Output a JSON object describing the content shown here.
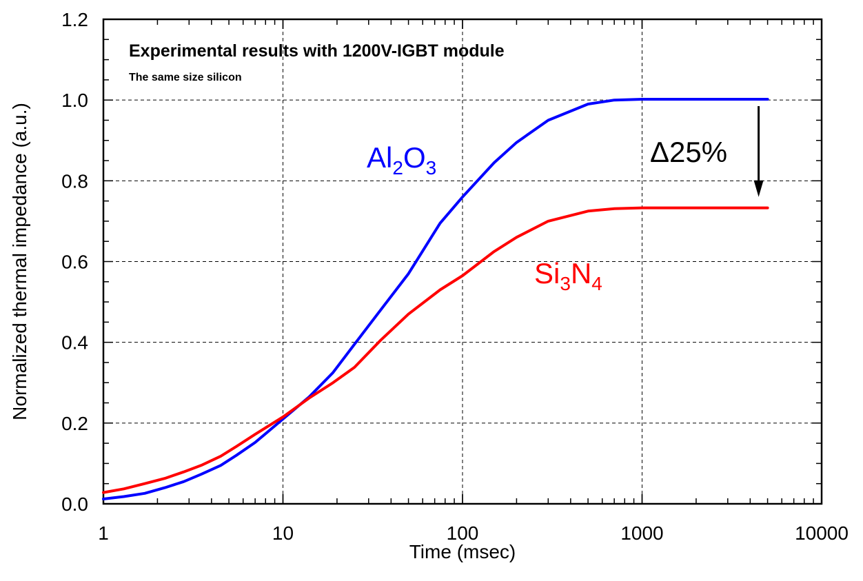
{
  "chart_data": {
    "type": "line",
    "title": "Experimental results with 1200V-IGBT module",
    "subtitle": "The same size silicon",
    "xlabel": "Time (msec)",
    "ylabel": "Normalized thermal impedance (a.u.)",
    "xscale": "log",
    "xlim": [
      1,
      10000
    ],
    "ylim": [
      0,
      1.2
    ],
    "xticks": [
      1,
      10,
      100,
      1000,
      10000
    ],
    "xtick_labels": [
      "1",
      "10",
      "100",
      "1000",
      "10000"
    ],
    "yticks": [
      0,
      0.2,
      0.4,
      0.6,
      0.8,
      1.0,
      1.2
    ],
    "ytick_labels": [
      "0.0",
      "0.2",
      "0.4",
      "0.6",
      "0.8",
      "1.0",
      "1.2"
    ],
    "grid": true,
    "series": [
      {
        "name": "Al2O3",
        "label_main": "Al",
        "label_sub1": "2",
        "label_mid": "O",
        "label_sub2": "3",
        "color": "#0000ff",
        "x": [
          1,
          1.3,
          1.7,
          2.2,
          2.8,
          3.5,
          4.5,
          5.5,
          7,
          10,
          14,
          19,
          25,
          35,
          50,
          75,
          100,
          150,
          200,
          300,
          500,
          700,
          1000,
          2000,
          5000
        ],
        "y": [
          0.012,
          0.018,
          0.026,
          0.04,
          0.055,
          0.073,
          0.095,
          0.12,
          0.152,
          0.21,
          0.265,
          0.325,
          0.395,
          0.48,
          0.57,
          0.695,
          0.76,
          0.845,
          0.895,
          0.95,
          0.99,
          1.0,
          1.002,
          1.002,
          1.002
        ]
      },
      {
        "name": "Si3N4",
        "label_main": "Si",
        "label_sub1": "3",
        "label_mid": "N",
        "label_sub2": "4",
        "color": "#ff0000",
        "x": [
          1,
          1.3,
          1.7,
          2.2,
          2.8,
          3.5,
          4.5,
          5.5,
          7,
          10,
          14,
          19,
          25,
          35,
          50,
          75,
          100,
          150,
          200,
          300,
          500,
          700,
          1000,
          2000,
          5000
        ],
        "y": [
          0.028,
          0.037,
          0.05,
          0.063,
          0.079,
          0.095,
          0.118,
          0.142,
          0.172,
          0.215,
          0.262,
          0.3,
          0.338,
          0.405,
          0.47,
          0.53,
          0.565,
          0.625,
          0.66,
          0.7,
          0.725,
          0.731,
          0.733,
          0.733,
          0.733
        ]
      }
    ],
    "annotations": {
      "delta_text": "Δ25%",
      "arrow_x": 5000,
      "arrow_from": 0.985,
      "arrow_to": 0.76
    }
  }
}
